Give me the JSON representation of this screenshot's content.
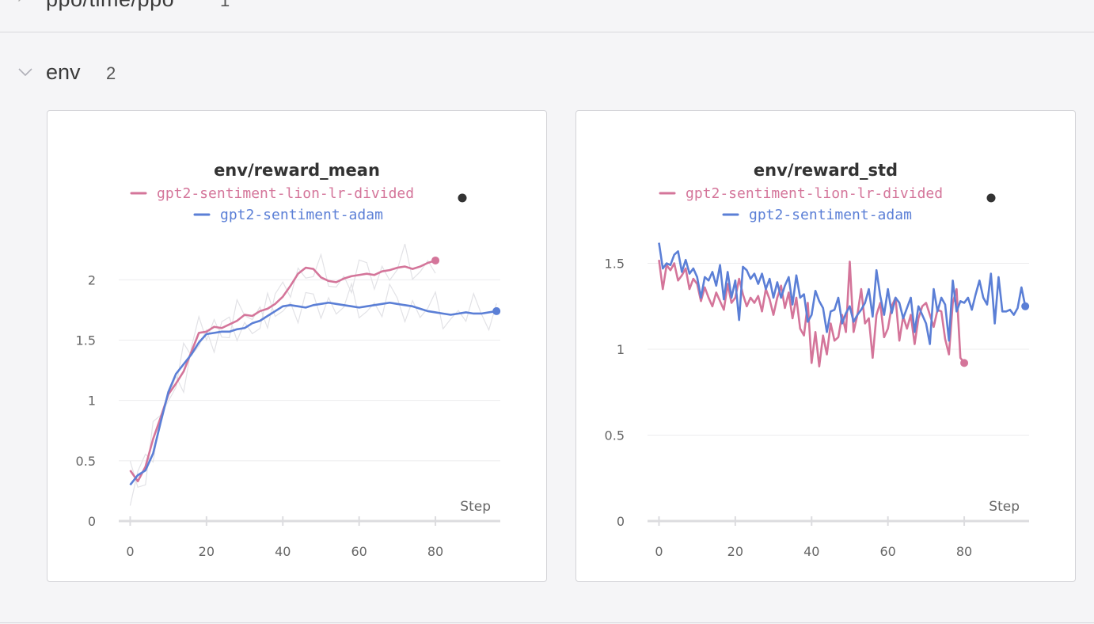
{
  "top_section": {
    "title": "ppo/time/ppo",
    "count": "1"
  },
  "section": {
    "title": "env",
    "count": "2"
  },
  "colors": {
    "lion": "#d4759a",
    "adam": "#5b7fd6",
    "ghost": "#e2e2e6",
    "grid": "#ececee",
    "axis": "#dcdcdf",
    "tick": "#666666"
  },
  "chart_data": [
    {
      "type": "line",
      "title": "env/reward_mean",
      "xlabel": "Step",
      "ylabel": "",
      "xlim": [
        -3,
        97
      ],
      "ylim": [
        0,
        2.35
      ],
      "xticks": [
        0,
        20,
        40,
        60,
        80
      ],
      "yticks": [
        0,
        0.5,
        1,
        1.5,
        2
      ],
      "ytick_labels": [
        "0",
        "0.5",
        "1",
        "1.5",
        "2"
      ],
      "grid": true,
      "legend_position": "top-center",
      "series": [
        {
          "name": "gpt2-sentiment-lion-lr-divided",
          "color": "#d4759a",
          "x": [
            0,
            2,
            4,
            6,
            8,
            10,
            12,
            14,
            16,
            18,
            20,
            22,
            24,
            26,
            28,
            30,
            32,
            34,
            36,
            38,
            40,
            42,
            44,
            46,
            48,
            50,
            52,
            54,
            56,
            58,
            60,
            62,
            64,
            66,
            68,
            70,
            72,
            74,
            76,
            78,
            80
          ],
          "y": [
            0.42,
            0.33,
            0.45,
            0.68,
            0.86,
            1.05,
            1.14,
            1.24,
            1.4,
            1.56,
            1.57,
            1.61,
            1.6,
            1.63,
            1.66,
            1.71,
            1.7,
            1.74,
            1.76,
            1.8,
            1.86,
            1.95,
            2.05,
            2.1,
            2.09,
            2.02,
            1.99,
            1.98,
            2.01,
            2.03,
            2.04,
            2.05,
            2.04,
            2.07,
            2.08,
            2.1,
            2.11,
            2.09,
            2.11,
            2.14,
            2.16
          ]
        },
        {
          "name": "gpt2-sentiment-adam",
          "color": "#5b7fd6",
          "x": [
            0,
            2,
            4,
            6,
            8,
            10,
            12,
            14,
            16,
            18,
            20,
            22,
            24,
            26,
            28,
            30,
            32,
            34,
            36,
            38,
            40,
            42,
            44,
            46,
            48,
            50,
            52,
            54,
            56,
            58,
            60,
            62,
            64,
            66,
            68,
            70,
            72,
            74,
            76,
            78,
            80,
            82,
            84,
            86,
            88,
            90,
            92,
            94,
            96
          ],
          "y": [
            0.3,
            0.38,
            0.42,
            0.56,
            0.82,
            1.07,
            1.22,
            1.3,
            1.38,
            1.48,
            1.55,
            1.56,
            1.57,
            1.57,
            1.59,
            1.6,
            1.64,
            1.66,
            1.7,
            1.74,
            1.78,
            1.79,
            1.78,
            1.77,
            1.79,
            1.8,
            1.81,
            1.8,
            1.79,
            1.78,
            1.77,
            1.78,
            1.79,
            1.8,
            1.81,
            1.8,
            1.79,
            1.78,
            1.76,
            1.74,
            1.73,
            1.72,
            1.71,
            1.72,
            1.73,
            1.72,
            1.72,
            1.73,
            1.74
          ]
        }
      ]
    },
    {
      "type": "line",
      "title": "env/reward_std",
      "xlabel": "Step",
      "ylabel": "",
      "xlim": [
        -3,
        97
      ],
      "ylim": [
        0,
        1.65
      ],
      "xticks": [
        0,
        20,
        40,
        60,
        80
      ],
      "yticks": [
        0,
        0.5,
        1,
        1.5
      ],
      "ytick_labels": [
        "0",
        "0.5",
        "1",
        "1.5"
      ],
      "grid": true,
      "legend_position": "top-center",
      "series": [
        {
          "name": "gpt2-sentiment-lion-lr-divided",
          "color": "#d4759a",
          "x": [
            0,
            1,
            2,
            3,
            4,
            5,
            6,
            7,
            8,
            9,
            10,
            11,
            12,
            13,
            14,
            15,
            16,
            17,
            18,
            19,
            20,
            21,
            22,
            23,
            24,
            25,
            26,
            27,
            28,
            29,
            30,
            31,
            32,
            33,
            34,
            35,
            36,
            37,
            38,
            39,
            40,
            41,
            42,
            43,
            44,
            45,
            46,
            47,
            48,
            49,
            50,
            51,
            52,
            53,
            54,
            55,
            56,
            57,
            58,
            59,
            60,
            61,
            62,
            63,
            64,
            65,
            66,
            67,
            68,
            69,
            70,
            71,
            72,
            73,
            74,
            75,
            76,
            77,
            78,
            79,
            80
          ],
          "y": [
            1.52,
            1.35,
            1.49,
            1.46,
            1.5,
            1.4,
            1.43,
            1.47,
            1.35,
            1.41,
            1.38,
            1.28,
            1.36,
            1.3,
            1.25,
            1.33,
            1.28,
            1.23,
            1.38,
            1.27,
            1.3,
            1.41,
            1.32,
            1.25,
            1.3,
            1.27,
            1.31,
            1.22,
            1.35,
            1.29,
            1.2,
            1.3,
            1.37,
            1.24,
            1.33,
            1.18,
            1.3,
            1.12,
            1.08,
            1.27,
            0.92,
            1.1,
            0.9,
            1.08,
            0.97,
            1.15,
            1.05,
            1.07,
            1.2,
            1.1,
            1.51,
            1.1,
            1.2,
            1.35,
            1.15,
            1.18,
            0.95,
            1.2,
            1.27,
            1.07,
            1.12,
            1.25,
            1.3,
            1.05,
            1.19,
            1.12,
            1.2,
            1.03,
            1.18,
            1.25,
            1.27,
            1.2,
            1.13,
            1.23,
            1.22,
            1.06,
            0.97,
            1.27,
            1.35,
            0.95,
            0.92
          ]
        },
        {
          "name": "gpt2-sentiment-adam",
          "color": "#5b7fd6",
          "x": [
            0,
            1,
            2,
            3,
            4,
            5,
            6,
            7,
            8,
            9,
            10,
            11,
            12,
            13,
            14,
            15,
            16,
            17,
            18,
            19,
            20,
            21,
            22,
            23,
            24,
            25,
            26,
            27,
            28,
            29,
            30,
            31,
            32,
            33,
            34,
            35,
            36,
            37,
            38,
            39,
            40,
            41,
            42,
            43,
            44,
            45,
            46,
            47,
            48,
            49,
            50,
            51,
            52,
            53,
            54,
            55,
            56,
            57,
            58,
            59,
            60,
            61,
            62,
            63,
            64,
            65,
            66,
            67,
            68,
            69,
            70,
            71,
            72,
            73,
            74,
            75,
            76,
            77,
            78,
            79,
            80,
            81,
            82,
            83,
            84,
            85,
            86,
            87,
            88,
            89,
            90,
            91,
            92,
            93,
            94,
            95,
            96
          ],
          "y": [
            1.62,
            1.47,
            1.5,
            1.49,
            1.55,
            1.57,
            1.45,
            1.52,
            1.44,
            1.47,
            1.42,
            1.3,
            1.42,
            1.4,
            1.45,
            1.37,
            1.49,
            1.29,
            1.45,
            1.3,
            1.4,
            1.17,
            1.48,
            1.46,
            1.41,
            1.44,
            1.38,
            1.44,
            1.35,
            1.41,
            1.3,
            1.39,
            1.3,
            1.37,
            1.42,
            1.26,
            1.43,
            1.3,
            1.32,
            1.16,
            1.2,
            1.34,
            1.28,
            1.24,
            1.1,
            1.22,
            1.23,
            1.3,
            1.15,
            1.21,
            1.25,
            1.16,
            1.2,
            1.23,
            1.27,
            1.35,
            1.19,
            1.46,
            1.31,
            1.2,
            1.35,
            1.21,
            1.3,
            1.27,
            1.18,
            1.24,
            1.3,
            1.1,
            1.25,
            1.2,
            1.15,
            1.03,
            1.35,
            1.22,
            1.3,
            1.26,
            1.05,
            1.4,
            1.22,
            1.28,
            1.27,
            1.3,
            1.23,
            1.32,
            1.4,
            1.3,
            1.26,
            1.44,
            1.15,
            1.42,
            1.22,
            1.22,
            1.23,
            1.2,
            1.24,
            1.36,
            1.25
          ]
        }
      ]
    }
  ]
}
